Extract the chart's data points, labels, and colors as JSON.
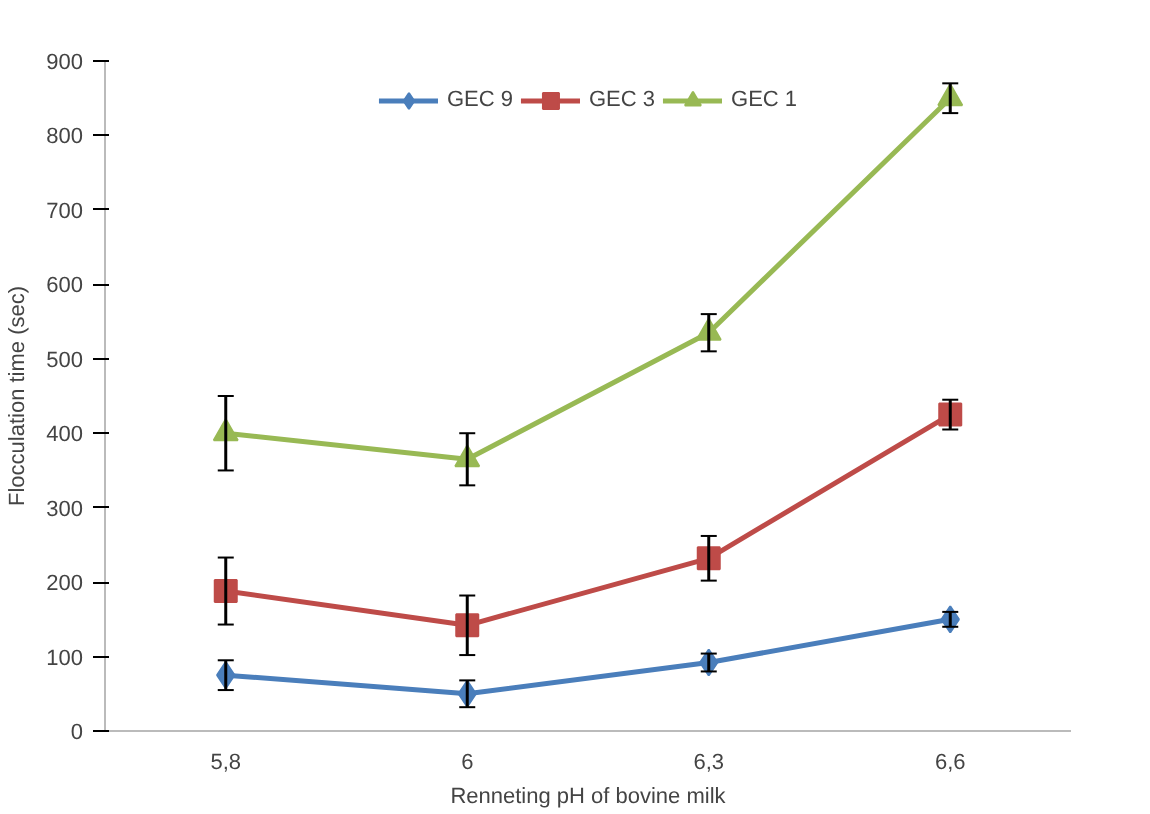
{
  "chart_data": {
    "type": "line",
    "xlabel": "Renneting pH of bovine milk",
    "ylabel": "Flocculation time (sec)",
    "categories": [
      "5,8",
      "6",
      "6,3",
      "6,6"
    ],
    "series": [
      {
        "name": "GEC 9",
        "color": "#4a7ebb",
        "marker": "diamond",
        "values": [
          75,
          50,
          92,
          150
        ],
        "errors": [
          20,
          18,
          12,
          10
        ]
      },
      {
        "name": "GEC 3",
        "color": "#be4b48",
        "marker": "square",
        "values": [
          188,
          142,
          232,
          425
        ],
        "errors": [
          45,
          40,
          30,
          20
        ]
      },
      {
        "name": "GEC 1",
        "color": "#98b954",
        "marker": "triangle",
        "values": [
          400,
          365,
          535,
          850
        ],
        "errors": [
          50,
          35,
          25,
          20
        ]
      }
    ],
    "ylim": [
      0,
      900
    ],
    "yticks": [
      0,
      100,
      200,
      300,
      400,
      500,
      600,
      700,
      800,
      900
    ],
    "grid": false,
    "legend": "top"
  }
}
